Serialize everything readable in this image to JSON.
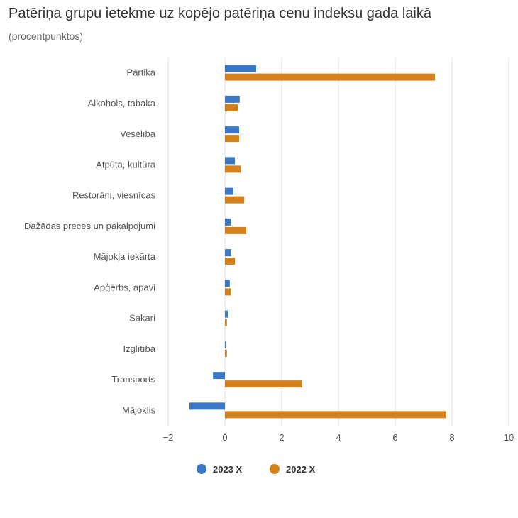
{
  "title": "Patēriņa grupu ietekme uz kopējo patēriņa cenu indeksu gada laikā",
  "subtitle": "(procentpunktos)",
  "colors": {
    "series_2023": "#3a78c5",
    "series_2022": "#d4811c",
    "grid": "#e0e0e0",
    "axis": "#cccccc"
  },
  "chart_data": {
    "type": "bar",
    "orientation": "horizontal",
    "categories": [
      "Pārtika",
      "Alkohols, tabaka",
      "Veselība",
      "Atpūta, kultūra",
      "Restorāni, viesnīcas",
      "Dažādas preces un pakalpojumi",
      "Mājokļa iekārta",
      "Apģērbs, apavi",
      "Sakari",
      "Izglītība",
      "Transports",
      "Mājoklis"
    ],
    "series": [
      {
        "name": "2023 X",
        "color": "#3a78c5",
        "values": [
          1.1,
          0.52,
          0.5,
          0.35,
          0.3,
          0.22,
          0.22,
          0.17,
          0.1,
          0.04,
          -0.42,
          -1.25
        ]
      },
      {
        "name": "2022 X",
        "color": "#d4811c",
        "values": [
          7.4,
          0.45,
          0.5,
          0.55,
          0.68,
          0.75,
          0.35,
          0.22,
          0.07,
          0.07,
          2.72,
          7.8
        ]
      }
    ],
    "xlim": [
      -2,
      10
    ],
    "xticks": [
      "−2",
      "0",
      "2",
      "4",
      "6",
      "8",
      "10"
    ],
    "xtick_values": [
      -2,
      0,
      2,
      4,
      6,
      8,
      10
    ],
    "grid": true,
    "legend_position": "bottom-center"
  }
}
